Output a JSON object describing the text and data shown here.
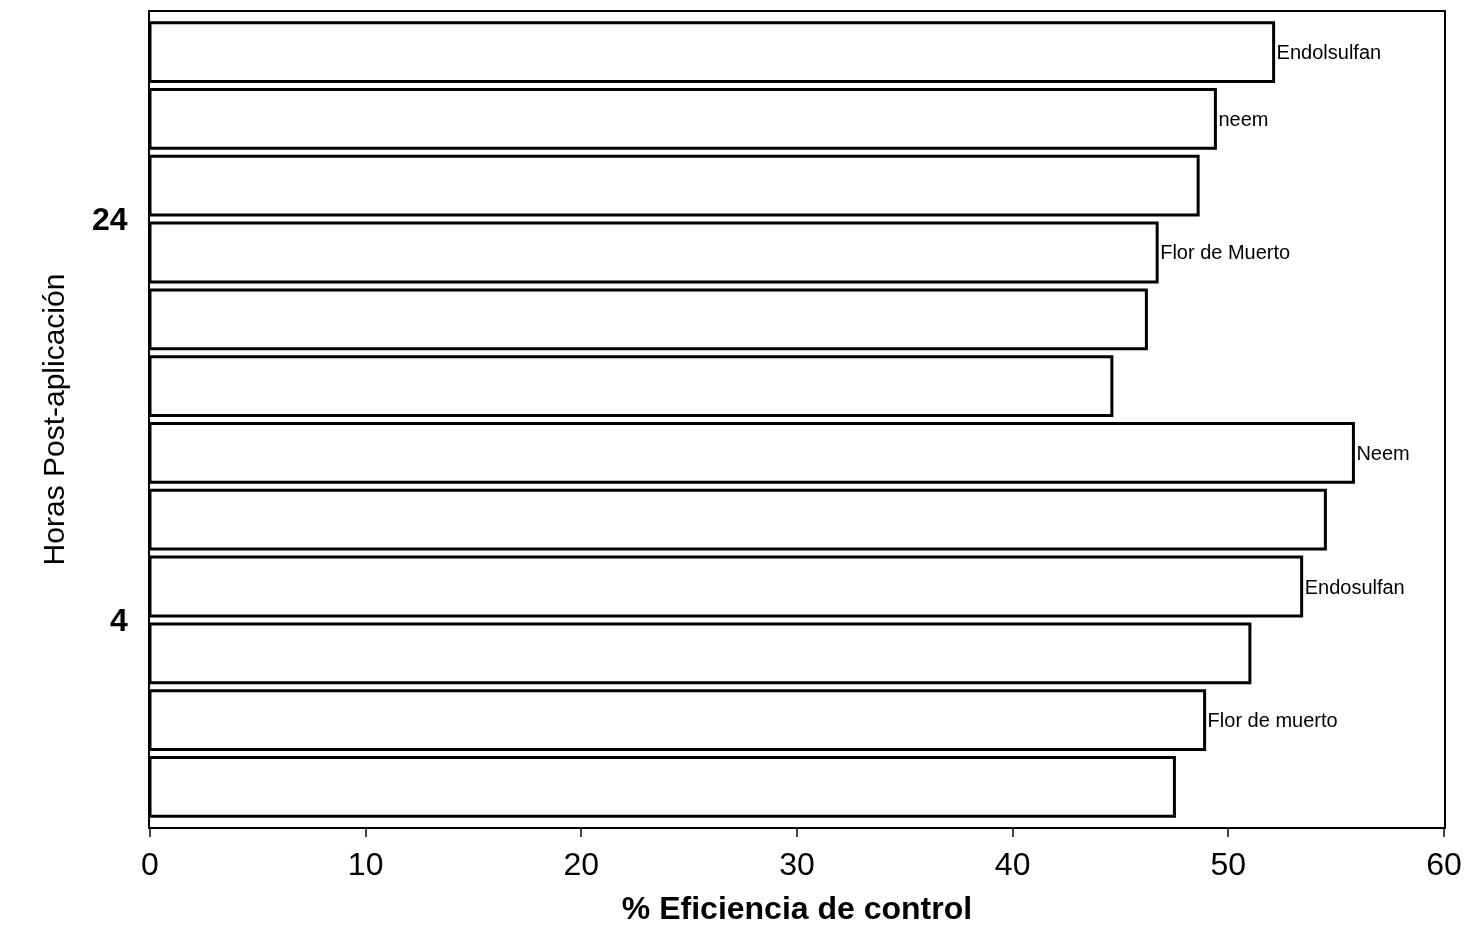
{
  "chart_data": {
    "type": "bar",
    "orientation": "horizontal",
    "xlabel": "% Eficiencia de control",
    "ylabel": "Horas Post-aplicación",
    "categories": [
      "Endolsulfan",
      "neem",
      null,
      "Flor de Muerto",
      null,
      null,
      "Neem",
      null,
      "Endosulfan",
      null,
      "Flor de muerto",
      null
    ],
    "values": [
      52.1,
      49.4,
      48.6,
      46.7,
      46.2,
      44.6,
      55.8,
      54.5,
      53.4,
      51.0,
      48.9,
      47.5
    ],
    "color": "#ffffff",
    "xlim": [
      0,
      60
    ],
    "xticks": [
      0,
      10,
      20,
      30,
      40,
      50,
      60
    ],
    "annotations": [
      "24",
      "4"
    ],
    "tick_labels": "x",
    "legend": false
  }
}
